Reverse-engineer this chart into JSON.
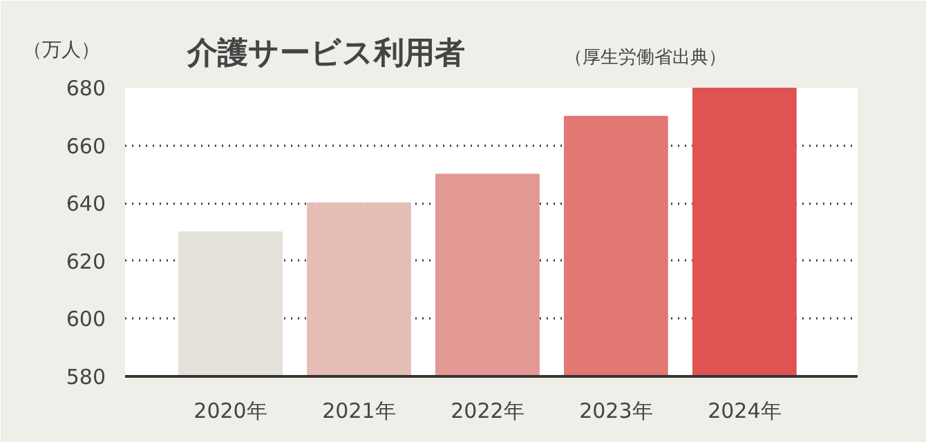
{
  "chart_data": {
    "type": "bar",
    "title": "介護サービス利用者",
    "subtitle": "（厚生労働省出典）",
    "ylabel": "（万人）",
    "categories": [
      "2020年",
      "2021年",
      "2022年",
      "2023年",
      "2024年"
    ],
    "values": [
      630,
      640,
      650,
      670,
      680
    ],
    "colors": [
      "#e4e1d8",
      "#e5bdb5",
      "#e39893",
      "#e37772",
      "#e05353"
    ],
    "ylim": [
      580,
      680
    ],
    "yticks": [
      580,
      600,
      620,
      640,
      660,
      680
    ],
    "grid": "y"
  }
}
